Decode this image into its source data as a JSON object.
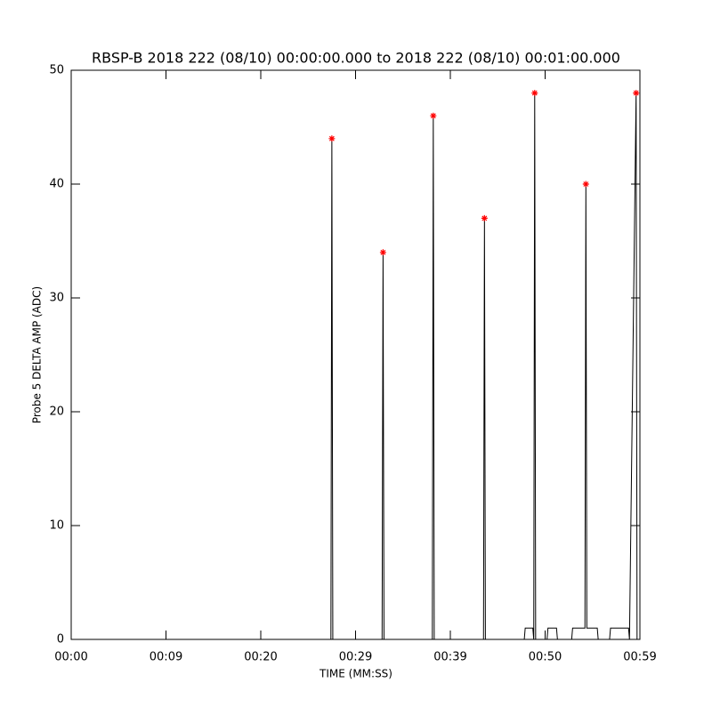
{
  "chart_data": {
    "type": "line",
    "title": "RBSP-B 2018 222 (08/10) 00:00:00.000 to 2018 222 (08/10) 00:01:00.000",
    "x_label": "TIME (MM:SS)",
    "y_label": "Probe 5 DELTA AMP (ADC)",
    "xlim": [
      0,
      60
    ],
    "ylim": [
      0,
      50
    ],
    "xticks": [
      {
        "value": 0,
        "label": "00:00"
      },
      {
        "value": 10,
        "label": "00:09"
      },
      {
        "value": 20,
        "label": "00:20"
      },
      {
        "value": 30,
        "label": "00:29"
      },
      {
        "value": 40,
        "label": "00:39"
      },
      {
        "value": 50,
        "label": "00:50"
      },
      {
        "value": 60,
        "label": "00:59"
      }
    ],
    "yticks": [
      0,
      10,
      20,
      30,
      40,
      50
    ],
    "series": [
      {
        "color": "#000000",
        "x": [
          0,
          27.4,
          27.5,
          27.6,
          32.8,
          32.9,
          33.0,
          38.1,
          38.2,
          38.3,
          43.5,
          43.6,
          43.7,
          47.8,
          47.9,
          48.7,
          48.8,
          48.9,
          49.0,
          50.2,
          50.3,
          51.2,
          51.3,
          52.8,
          52.9,
          54.2,
          54.3,
          54.4,
          55.5,
          55.6,
          56.8,
          56.9,
          58.8,
          58.9,
          59.6,
          59.7
        ],
        "values": [
          0,
          0,
          44,
          0,
          0,
          34,
          0,
          0,
          46,
          0,
          0,
          37,
          0,
          0,
          1,
          1,
          0,
          48,
          0,
          0,
          1,
          1,
          0,
          0,
          1,
          1,
          40,
          1,
          1,
          0,
          0,
          1,
          1,
          0,
          48,
          0
        ]
      },
      {
        "color": "#ff0000",
        "marker": "asterisk",
        "x": [
          27.5,
          32.9,
          38.2,
          43.6,
          48.9,
          54.3,
          59.6
        ],
        "values": [
          44,
          34,
          46,
          37,
          48,
          40,
          48
        ]
      }
    ]
  }
}
